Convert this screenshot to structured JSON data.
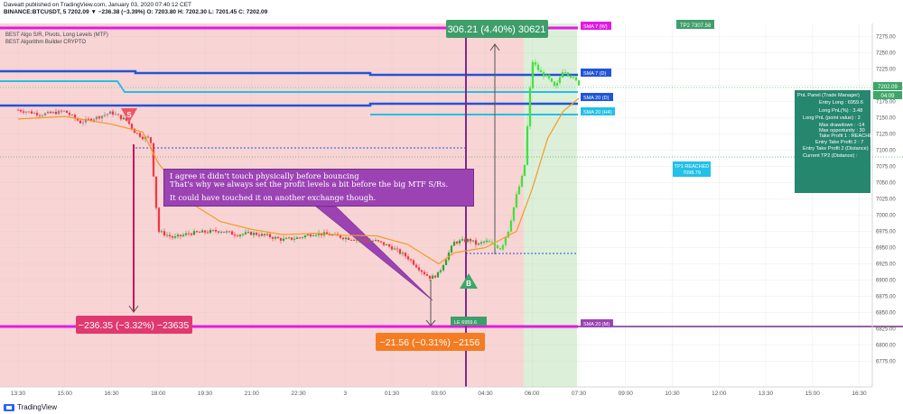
{
  "header": {
    "line1": "Daveatt published on TradingView.com, January 03, 2020 07:40:12 CET",
    "line2": "BINANCE:BTCUSDT, 5  7202.09  ▼ −236.38 (−3.39%)  O: 7203.80  H: 7202.30  L: 7201.45  C: 7202.09",
    "indicators": [
      "BEST Algo S/R, Pivots, Long Levels (MTF)",
      "BEST Algorithm Builder CRYPTO"
    ]
  },
  "footer": {
    "brand": "TradingView"
  },
  "note": {
    "lines": [
      "I agree it didn't touch physically before bouncing",
      "That's why we always set the profit levels a bit before the big MTF S/Rs.",
      "",
      "It could have touched it on another exchange though."
    ]
  },
  "labels": {
    "top_measure": "306.21 (4.40%) 30621",
    "bottom_left_measure": "−236.35 (−3.32%) −23635",
    "bottom_mid_measure": "−21.56 (−0.31%) −2156",
    "sma7_top": "SMA 7 (W)",
    "tp2": "TP2 7307.58",
    "sma7d": "SMA 7 (D)",
    "sma20d": "SMA 20 (D)",
    "sma20h4": "SMA 20 (H4)",
    "tp1": "TP1 REACHED",
    "tp1_price": "7098.79",
    "le": "LE 6959.6",
    "sma20m": "SMA 20 (M)",
    "price_now": "7202.09",
    "countdown": "04:09",
    "sell_marker": "S",
    "buy_marker": "B"
  },
  "info_panel": {
    "rows": [
      "PnL Panel (Trade Manager)",
      "Entry Long : 6959.6",
      "Long PnL(%) : 3.48",
      "Long PnL (point value) : 2",
      "Max drawdown : -14",
      "Max opportunity : 30",
      "Take Profit 1 : REACHED",
      "Entry Take Profit 2 : 7",
      "Entry Take Profit 2 (Distance)",
      "Current TP2 (Distance) :"
    ]
  },
  "colors": {
    "short_zone": "#f9d4d4",
    "long_zone": "#dcefd8",
    "candle_red": "#f23645",
    "candle_green": "#22ab34",
    "candle_grey": "#8c8c8c",
    "ema_orange": "#f59a23",
    "sma_blue": "#2155d8",
    "sma_cyan": "#23c0e8",
    "magenta": "#e21ae2",
    "purple_line": "#7b2a8b",
    "crimson_label": "#e0396f",
    "orange_label": "#f57c22",
    "green_label": "#3e9e6a",
    "note_purple": "#9c43b4"
  },
  "chart_data": {
    "type": "line",
    "symbol": "BINANCE:BTCUSDT",
    "interval": "5",
    "y_ticks": [
      7275,
      7250,
      7225,
      7200,
      7175,
      7150,
      7125,
      7100,
      7075,
      7050,
      7025,
      7000,
      6975,
      6950,
      6925,
      6900,
      6875,
      6850,
      6825,
      6800,
      6775
    ],
    "x_ticks": [
      "13:30",
      "15:00",
      "16:30",
      "18:00",
      "19:30",
      "21:00",
      "22:30",
      "3",
      "01:30",
      "03:00",
      "04:30",
      "06:00",
      "07:30",
      "09:00",
      "10:30",
      "12:00",
      "13:30",
      "15:00",
      "16:30"
    ],
    "ylim": [
      6762,
      7300
    ],
    "series": [
      {
        "name": "BTCUSDT",
        "x": [
          "13:30",
          "14:15",
          "15:00",
          "15:30",
          "16:00",
          "16:30",
          "17:00",
          "17:15",
          "17:30",
          "17:45",
          "18:00",
          "18:30",
          "19:00",
          "19:30",
          "20:00",
          "20:30",
          "21:00",
          "21:30",
          "22:00",
          "22:30",
          "23:00",
          "23:30",
          "00:00",
          "00:30",
          "01:00",
          "01:30",
          "02:00",
          "02:30",
          "02:45",
          "03:00",
          "03:15",
          "03:30",
          "04:00",
          "04:15",
          "04:30",
          "04:45",
          "05:00",
          "05:15",
          "05:30",
          "05:45",
          "06:00",
          "06:15",
          "06:30",
          "06:45",
          "07:00",
          "07:30"
        ],
        "values": [
          7162,
          7155,
          7160,
          7143,
          7150,
          7158,
          7145,
          7128,
          7120,
          7118,
          6975,
          6965,
          6972,
          6974,
          6976,
          6970,
          6972,
          6968,
          6962,
          6965,
          6972,
          6970,
          6965,
          6962,
          6960,
          6950,
          6935,
          6912,
          6903,
          6910,
          6935,
          6958,
          6962,
          6954,
          6960,
          6955,
          6948,
          6978,
          7030,
          7070,
          7238,
          7220,
          7212,
          7195,
          7225,
          7202
        ]
      },
      {
        "name": "EMA",
        "x": [
          "13:30",
          "15:00",
          "16:30",
          "17:30",
          "18:00",
          "19:00",
          "20:00",
          "21:00",
          "22:00",
          "23:00",
          "00:00",
          "01:00",
          "02:00",
          "03:00",
          "03:30",
          "04:30",
          "05:30",
          "06:00",
          "06:30",
          "07:00",
          "07:30"
        ],
        "values": [
          7148,
          7152,
          7140,
          7128,
          7080,
          7020,
          6990,
          6978,
          6970,
          6972,
          6969,
          6968,
          6955,
          6925,
          6942,
          6950,
          6975,
          7040,
          7118,
          7160,
          7180
        ]
      }
    ],
    "levels": [
      {
        "label": "SMA 7 (W)",
        "value": 7288
      },
      {
        "label": "SMA 7 (D)",
        "value": 7223
      },
      {
        "label": "SMA 20 (D)",
        "value": 7180
      },
      {
        "label": "SMA 20 (H4)",
        "value": 7163
      },
      {
        "label": "SMA 20 (M)",
        "value": 6854
      },
      {
        "label": "TP1 REACHED",
        "value": 7098.79
      },
      {
        "label": "TP2",
        "value": 7307.58
      },
      {
        "label": "LE",
        "value": 6959.6
      }
    ],
    "current_price": 7202.09,
    "grid": true
  }
}
